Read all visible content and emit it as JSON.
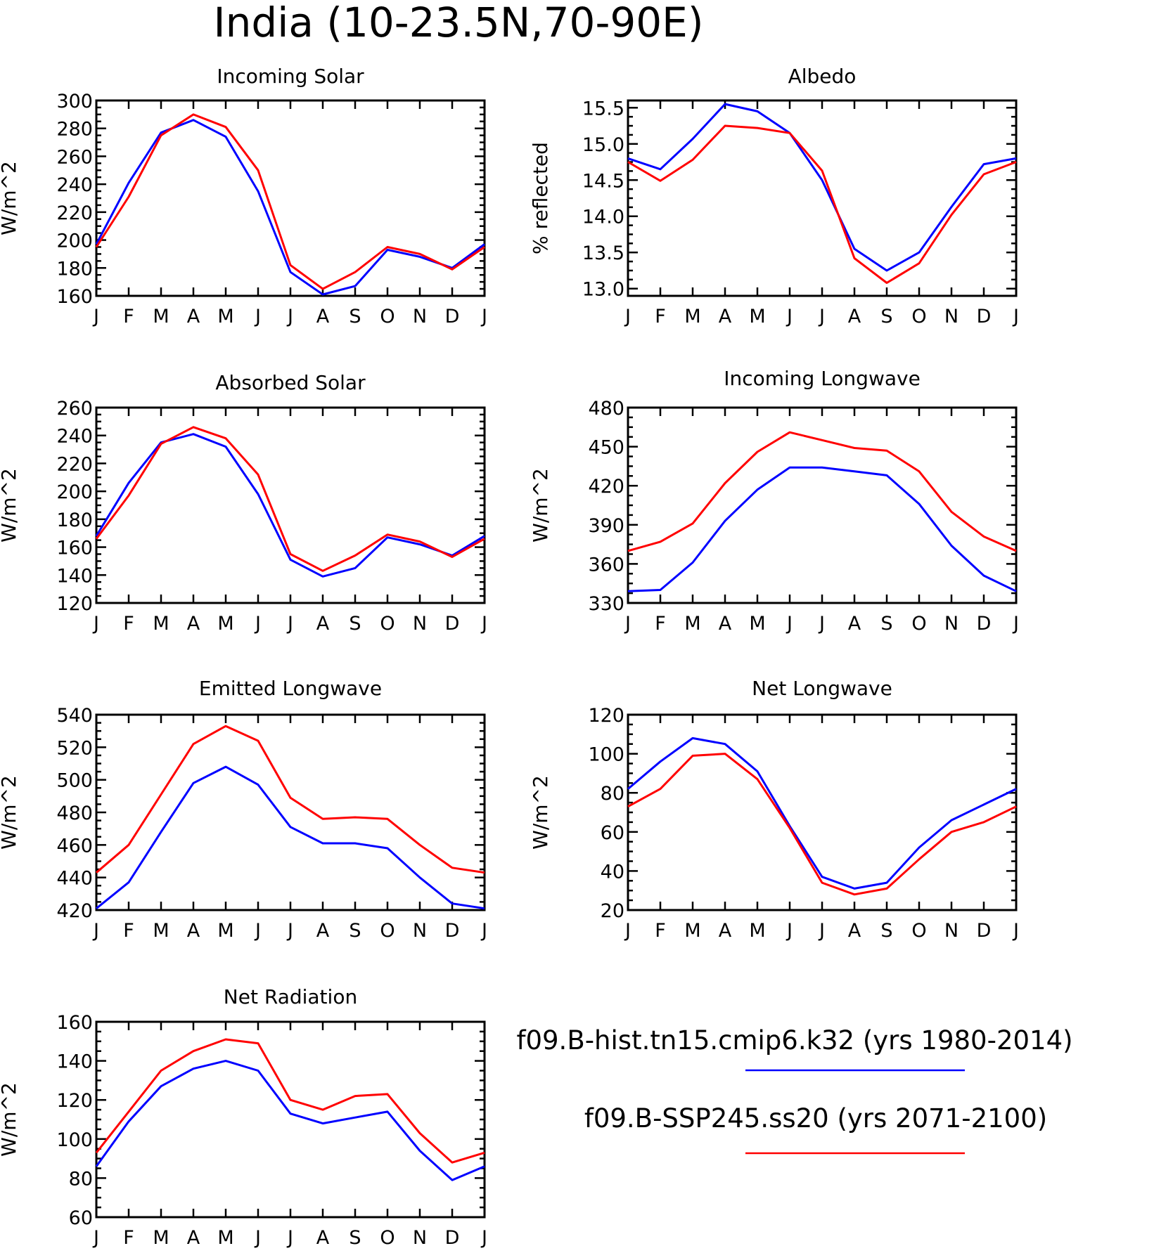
{
  "title": "India (10-23.5N,70-90E)",
  "colors": {
    "hist": "#0000ff",
    "ssp": "#ff0000"
  },
  "legend": [
    {
      "label": "f09.B-hist.tn15.cmip6.k32 (yrs 1980-2014)",
      "color": "#0000ff"
    },
    {
      "label": "f09.B-SSP245.ss20 (yrs 2071-2100)",
      "color": "#ff0000"
    }
  ],
  "chart_data": [
    {
      "type": "line",
      "title": "Incoming Solar",
      "ylabel": "W/m^2",
      "categories": [
        "J",
        "F",
        "M",
        "A",
        "M",
        "J",
        "J",
        "A",
        "S",
        "O",
        "N",
        "D",
        "J"
      ],
      "ylim": [
        160,
        300
      ],
      "yticks": [
        160,
        180,
        200,
        220,
        240,
        260,
        280,
        300
      ],
      "ytick_labels": [
        "160",
        "180",
        "200",
        "220",
        "240",
        "260",
        "280",
        "300"
      ],
      "series": [
        {
          "values": [
            197,
            241,
            277,
            286,
            274,
            235,
            177,
            161,
            167,
            193,
            188,
            180,
            197
          ],
          "color": "#0000ff"
        },
        {
          "values": [
            195,
            231,
            275,
            290,
            281,
            250,
            182,
            165,
            177,
            195,
            190,
            179,
            195
          ],
          "color": "#ff0000"
        }
      ]
    },
    {
      "type": "line",
      "title": "Albedo",
      "ylabel": "% reflected",
      "categories": [
        "J",
        "F",
        "M",
        "A",
        "M",
        "J",
        "J",
        "A",
        "S",
        "O",
        "N",
        "D",
        "J"
      ],
      "ylim": [
        12.9,
        15.6
      ],
      "yticks": [
        13.0,
        13.5,
        14.0,
        14.5,
        15.0,
        15.5
      ],
      "ytick_labels": [
        "13.0",
        "13.5",
        "14.0",
        "14.5",
        "15.0",
        "15.5"
      ],
      "series": [
        {
          "values": [
            14.8,
            14.65,
            15.07,
            15.55,
            15.45,
            15.15,
            14.5,
            13.55,
            13.25,
            13.5,
            14.13,
            14.72,
            14.8
          ],
          "color": "#0000ff"
        },
        {
          "values": [
            14.75,
            14.49,
            14.78,
            15.25,
            15.22,
            15.15,
            14.63,
            13.42,
            13.08,
            13.35,
            14.02,
            14.58,
            14.75
          ],
          "color": "#ff0000"
        }
      ]
    },
    {
      "type": "line",
      "title": "Absorbed Solar",
      "ylabel": "W/m^2",
      "categories": [
        "J",
        "F",
        "M",
        "A",
        "M",
        "J",
        "J",
        "A",
        "S",
        "O",
        "N",
        "D",
        "J"
      ],
      "ylim": [
        120,
        260
      ],
      "yticks": [
        120,
        140,
        160,
        180,
        200,
        220,
        240,
        260
      ],
      "ytick_labels": [
        "120",
        "140",
        "160",
        "180",
        "200",
        "220",
        "240",
        "260"
      ],
      "series": [
        {
          "values": [
            168,
            206,
            235,
            241,
            232,
            198,
            151,
            139,
            145,
            167,
            162,
            154,
            168
          ],
          "color": "#0000ff"
        },
        {
          "values": [
            166,
            197,
            234,
            246,
            238,
            212,
            155,
            143,
            154,
            169,
            164,
            153,
            166
          ],
          "color": "#ff0000"
        }
      ]
    },
    {
      "type": "line",
      "title": "Incoming Longwave",
      "ylabel": "W/m^2",
      "categories": [
        "J",
        "F",
        "M",
        "A",
        "M",
        "J",
        "J",
        "A",
        "S",
        "O",
        "N",
        "D",
        "J"
      ],
      "ylim": [
        330,
        480
      ],
      "yticks": [
        330,
        360,
        390,
        420,
        450,
        480
      ],
      "ytick_labels": [
        "330",
        "360",
        "390",
        "420",
        "450",
        "480"
      ],
      "series": [
        {
          "values": [
            339,
            340,
            361,
            393,
            417,
            434,
            434,
            431,
            428,
            406,
            374,
            351,
            339
          ],
          "color": "#0000ff"
        },
        {
          "values": [
            370,
            377,
            391,
            422,
            446,
            461,
            455,
            449,
            447,
            431,
            400,
            381,
            370
          ],
          "color": "#ff0000"
        }
      ]
    },
    {
      "type": "line",
      "title": "Emitted Longwave",
      "ylabel": "W/m^2",
      "categories": [
        "J",
        "F",
        "M",
        "A",
        "M",
        "J",
        "J",
        "A",
        "S",
        "O",
        "N",
        "D",
        "J"
      ],
      "ylim": [
        420,
        540
      ],
      "yticks": [
        420,
        440,
        460,
        480,
        500,
        520,
        540
      ],
      "ytick_labels": [
        "420",
        "440",
        "460",
        "480",
        "500",
        "520",
        "540"
      ],
      "series": [
        {
          "values": [
            421,
            437,
            468,
            498,
            508,
            497,
            471,
            461,
            461,
            458,
            440,
            424,
            421
          ],
          "color": "#0000ff"
        },
        {
          "values": [
            443,
            460,
            491,
            522,
            533,
            524,
            489,
            476,
            477,
            476,
            460,
            446,
            443
          ],
          "color": "#ff0000"
        }
      ]
    },
    {
      "type": "line",
      "title": "Net Longwave",
      "ylabel": "W/m^2",
      "categories": [
        "J",
        "F",
        "M",
        "A",
        "M",
        "J",
        "J",
        "A",
        "S",
        "O",
        "N",
        "D",
        "J"
      ],
      "ylim": [
        20,
        120
      ],
      "yticks": [
        20,
        40,
        60,
        80,
        100,
        120
      ],
      "ytick_labels": [
        "20",
        "40",
        "60",
        "80",
        "100",
        "120"
      ],
      "series": [
        {
          "values": [
            82,
            96,
            108,
            105,
            91,
            63,
            37,
            31,
            34,
            52,
            66,
            74,
            82
          ],
          "color": "#0000ff"
        },
        {
          "values": [
            73,
            82,
            99,
            100,
            87,
            62,
            34,
            28,
            31,
            46,
            60,
            65,
            73
          ],
          "color": "#ff0000"
        }
      ]
    },
    {
      "type": "line",
      "title": "Net Radiation",
      "ylabel": "W/m^2",
      "categories": [
        "J",
        "F",
        "M",
        "A",
        "M",
        "J",
        "J",
        "A",
        "S",
        "O",
        "N",
        "D",
        "J"
      ],
      "ylim": [
        60,
        160
      ],
      "yticks": [
        60,
        80,
        100,
        120,
        140,
        160
      ],
      "ytick_labels": [
        "60",
        "80",
        "100",
        "120",
        "140",
        "160"
      ],
      "series": [
        {
          "values": [
            86,
            109,
            127,
            136,
            140,
            135,
            113,
            108,
            111,
            114,
            94,
            79,
            86
          ],
          "color": "#0000ff"
        },
        {
          "values": [
            93,
            114,
            135,
            145,
            151,
            149,
            120,
            115,
            122,
            123,
            103,
            88,
            93
          ],
          "color": "#ff0000"
        }
      ]
    }
  ]
}
